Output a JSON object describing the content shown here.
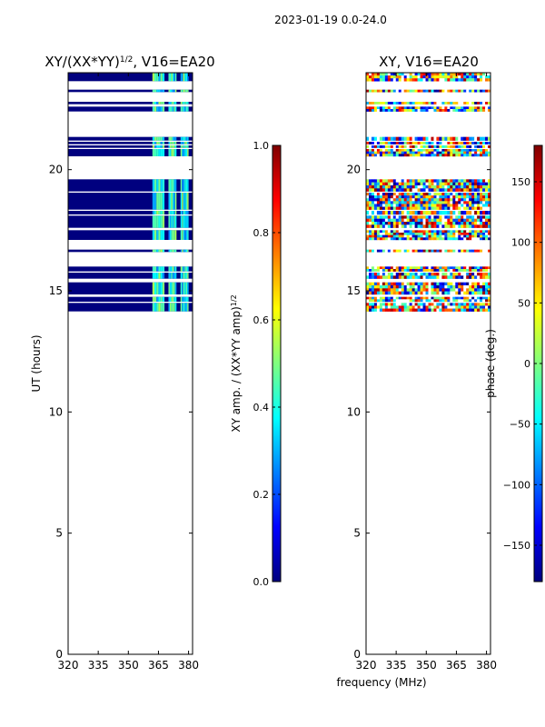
{
  "suptitle": "2023-01-19 0.0-24.0",
  "colors": {
    "background": "#ffffff",
    "missing": "#ffffff",
    "frame": "#000000",
    "jet": [
      "#00007f",
      "#0000ff",
      "#007fff",
      "#00ffff",
      "#7fff7f",
      "#ffff00",
      "#ff7f00",
      "#ff0000",
      "#7f0000"
    ]
  },
  "chart_data": [
    {
      "type": "heatmap",
      "title_main": "XY/(XX*YY)",
      "title_sup": "1/2",
      "title_tail": ", V16=EA20",
      "xlabel": "",
      "ylabel": "UT (hours)",
      "xlim": [
        320,
        382
      ],
      "ylim": [
        0,
        24
      ],
      "xticks": [
        320,
        335,
        350,
        365,
        380
      ],
      "xtick_labels": [
        "320",
        "335",
        "350",
        "365",
        "380"
      ],
      "yticks": [
        0,
        5,
        10,
        15,
        20
      ],
      "ytick_labels": [
        "0",
        "5",
        "10",
        "15",
        "20"
      ],
      "data_rows_ut": [
        [
          14.15,
          14.5
        ],
        [
          14.55,
          14.75
        ],
        [
          14.85,
          15.35
        ],
        [
          15.5,
          15.75
        ],
        [
          15.8,
          16.0
        ],
        [
          16.6,
          16.7
        ],
        [
          17.1,
          17.5
        ],
        [
          17.6,
          18.1
        ],
        [
          18.15,
          18.3
        ],
        [
          18.35,
          19.05
        ],
        [
          19.1,
          19.6
        ],
        [
          20.55,
          20.85
        ],
        [
          20.9,
          21.0
        ],
        [
          21.05,
          21.15
        ],
        [
          21.2,
          21.35
        ],
        [
          22.4,
          22.6
        ],
        [
          22.7,
          22.8
        ],
        [
          23.2,
          23.3
        ],
        [
          23.65,
          24.0
        ]
      ],
      "bright_bands_mhz": [
        [
          362,
          368
        ],
        [
          370,
          374
        ],
        [
          376,
          380
        ]
      ],
      "value_range": [
        0.0,
        1.0
      ],
      "colorbar": {
        "label_main": "XY amp. / (XX*YY amp)",
        "label_sup": "1/2",
        "ticks": [
          0.0,
          0.2,
          0.4,
          0.6,
          0.8,
          1.0
        ],
        "tick_labels": [
          "0.0",
          "0.2",
          "0.4",
          "0.6",
          "0.8",
          "1.0"
        ]
      }
    },
    {
      "type": "heatmap",
      "title": "XY, V16=EA20",
      "xlabel": "frequency (MHz)",
      "ylabel": "",
      "xlim": [
        320,
        382
      ],
      "ylim": [
        0,
        24
      ],
      "xticks": [
        320,
        335,
        350,
        365,
        380
      ],
      "xtick_labels": [
        "320",
        "335",
        "350",
        "365",
        "380"
      ],
      "yticks": [
        0,
        5,
        10,
        15,
        20
      ],
      "ytick_labels": [
        "0",
        "5",
        "10",
        "15",
        "20"
      ],
      "data_rows_ut": [
        [
          14.15,
          14.5
        ],
        [
          14.55,
          14.75
        ],
        [
          14.85,
          15.35
        ],
        [
          15.5,
          15.75
        ],
        [
          15.8,
          16.0
        ],
        [
          16.6,
          16.7
        ],
        [
          17.1,
          17.5
        ],
        [
          17.6,
          18.1
        ],
        [
          18.15,
          18.3
        ],
        [
          18.35,
          19.05
        ],
        [
          19.1,
          19.6
        ],
        [
          20.55,
          20.85
        ],
        [
          20.9,
          21.0
        ],
        [
          21.05,
          21.15
        ],
        [
          21.2,
          21.35
        ],
        [
          22.4,
          22.6
        ],
        [
          22.7,
          22.8
        ],
        [
          23.2,
          23.3
        ],
        [
          23.65,
          24.0
        ]
      ],
      "value_range": [
        -180,
        180
      ],
      "colorbar": {
        "label": "phase (deg.)",
        "ticks": [
          -150,
          -100,
          -50,
          0,
          50,
          100,
          150
        ],
        "tick_labels": [
          "−150",
          "−100",
          "−50",
          "0",
          "50",
          "100",
          "150"
        ]
      }
    }
  ]
}
